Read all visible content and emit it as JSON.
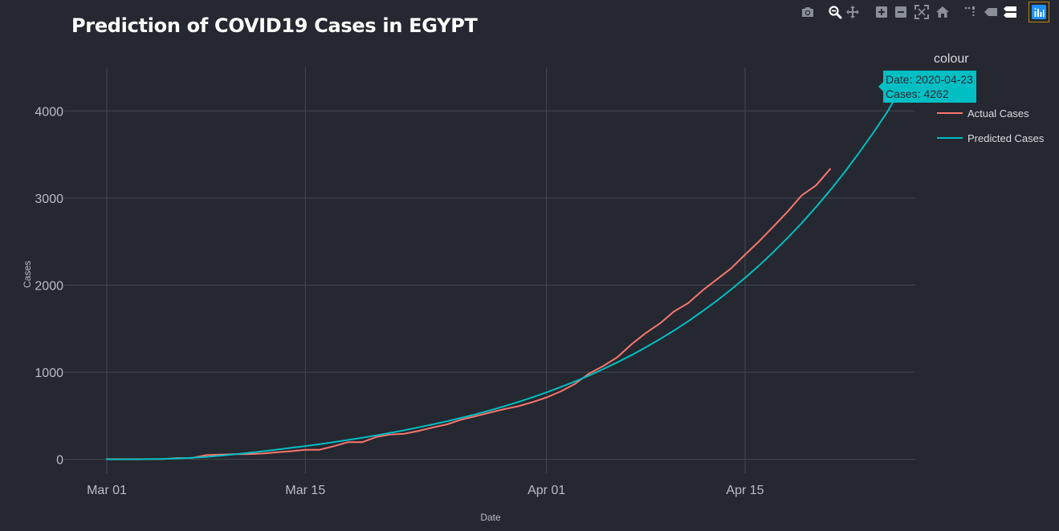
{
  "title": "Prediction of COVID19 Cases in EGYPT",
  "modebar": {
    "buttons": [
      {
        "name": "camera-icon",
        "label": "Download plot as a png"
      },
      {
        "name": "zoom-icon",
        "label": "Zoom"
      },
      {
        "name": "pan-icon",
        "label": "Pan"
      },
      {
        "name": "zoom-in-icon",
        "label": "Zoom in"
      },
      {
        "name": "zoom-out-icon",
        "label": "Zoom out"
      },
      {
        "name": "autoscale-icon",
        "label": "Autoscale"
      },
      {
        "name": "home-icon",
        "label": "Reset axes"
      },
      {
        "name": "spike-lines-icon",
        "label": "Toggle spike lines"
      },
      {
        "name": "hover-closest-icon",
        "label": "Show closest data on hover"
      },
      {
        "name": "hover-compare-icon",
        "label": "Compare data on hover"
      },
      {
        "name": "plotly-logo-icon",
        "label": "Produced with Plotly"
      }
    ]
  },
  "tooltip": {
    "line1": "Date: 2020-04-23",
    "line2": "Cases: 4262"
  },
  "colors": {
    "background": "#252830",
    "grid": "#444852",
    "text": "#d8dbe0",
    "actual": "#f8766d",
    "predicted": "#00bfc4"
  },
  "chart_data": {
    "type": "line",
    "title": "Prediction of COVID19 Cases in EGYPT",
    "xlabel": "Date",
    "ylabel": "Cases",
    "legend_title": "colour",
    "legend_position": "right",
    "grid": true,
    "xlim": [
      "2020-02-27",
      "2020-04-27"
    ],
    "ylim": [
      -160,
      4500
    ],
    "x_ticks": [
      {
        "date": "2020-03-01",
        "label": "Mar 01"
      },
      {
        "date": "2020-03-15",
        "label": "Mar 15"
      },
      {
        "date": "2020-04-01",
        "label": "Apr 01"
      },
      {
        "date": "2020-04-15",
        "label": "Apr 15"
      }
    ],
    "y_ticks": [
      0,
      1000,
      2000,
      3000,
      4000
    ],
    "series": [
      {
        "name": "Actual Cases",
        "color": "#f8766d",
        "start": "2020-03-01",
        "values": [
          2,
          2,
          2,
          2,
          3,
          15,
          15,
          48,
          55,
          59,
          60,
          67,
          80,
          93,
          110,
          110,
          150,
          196,
          196,
          256,
          285,
          294,
          327,
          366,
          402,
          456,
          495,
          536,
          576,
          609,
          656,
          710,
          779,
          865,
          985,
          1070,
          1173,
          1322,
          1450,
          1560,
          1699,
          1794,
          1939,
          2065,
          2190,
          2350,
          2505,
          2673,
          2844,
          3032,
          3144,
          3333
        ]
      },
      {
        "name": "Predicted Cases",
        "color": "#00bfc4",
        "start": "2020-03-01",
        "values": [
          0,
          0,
          0,
          2,
          5,
          10,
          18,
          28,
          42,
          57,
          74,
          92,
          112,
          132,
          152,
          174,
          197,
          222,
          248,
          275,
          304,
          335,
          368,
          402,
          438,
          476,
          517,
          561,
          608,
          658,
          711,
          768,
          829,
          893,
          962,
          1036,
          1114,
          1197,
          1286,
          1380,
          1480,
          1586,
          1700,
          1820,
          1948,
          2083,
          2227,
          2380,
          2542,
          2714,
          2896,
          3089,
          3294,
          3512,
          3741,
          3982,
          4262
        ]
      }
    ]
  }
}
